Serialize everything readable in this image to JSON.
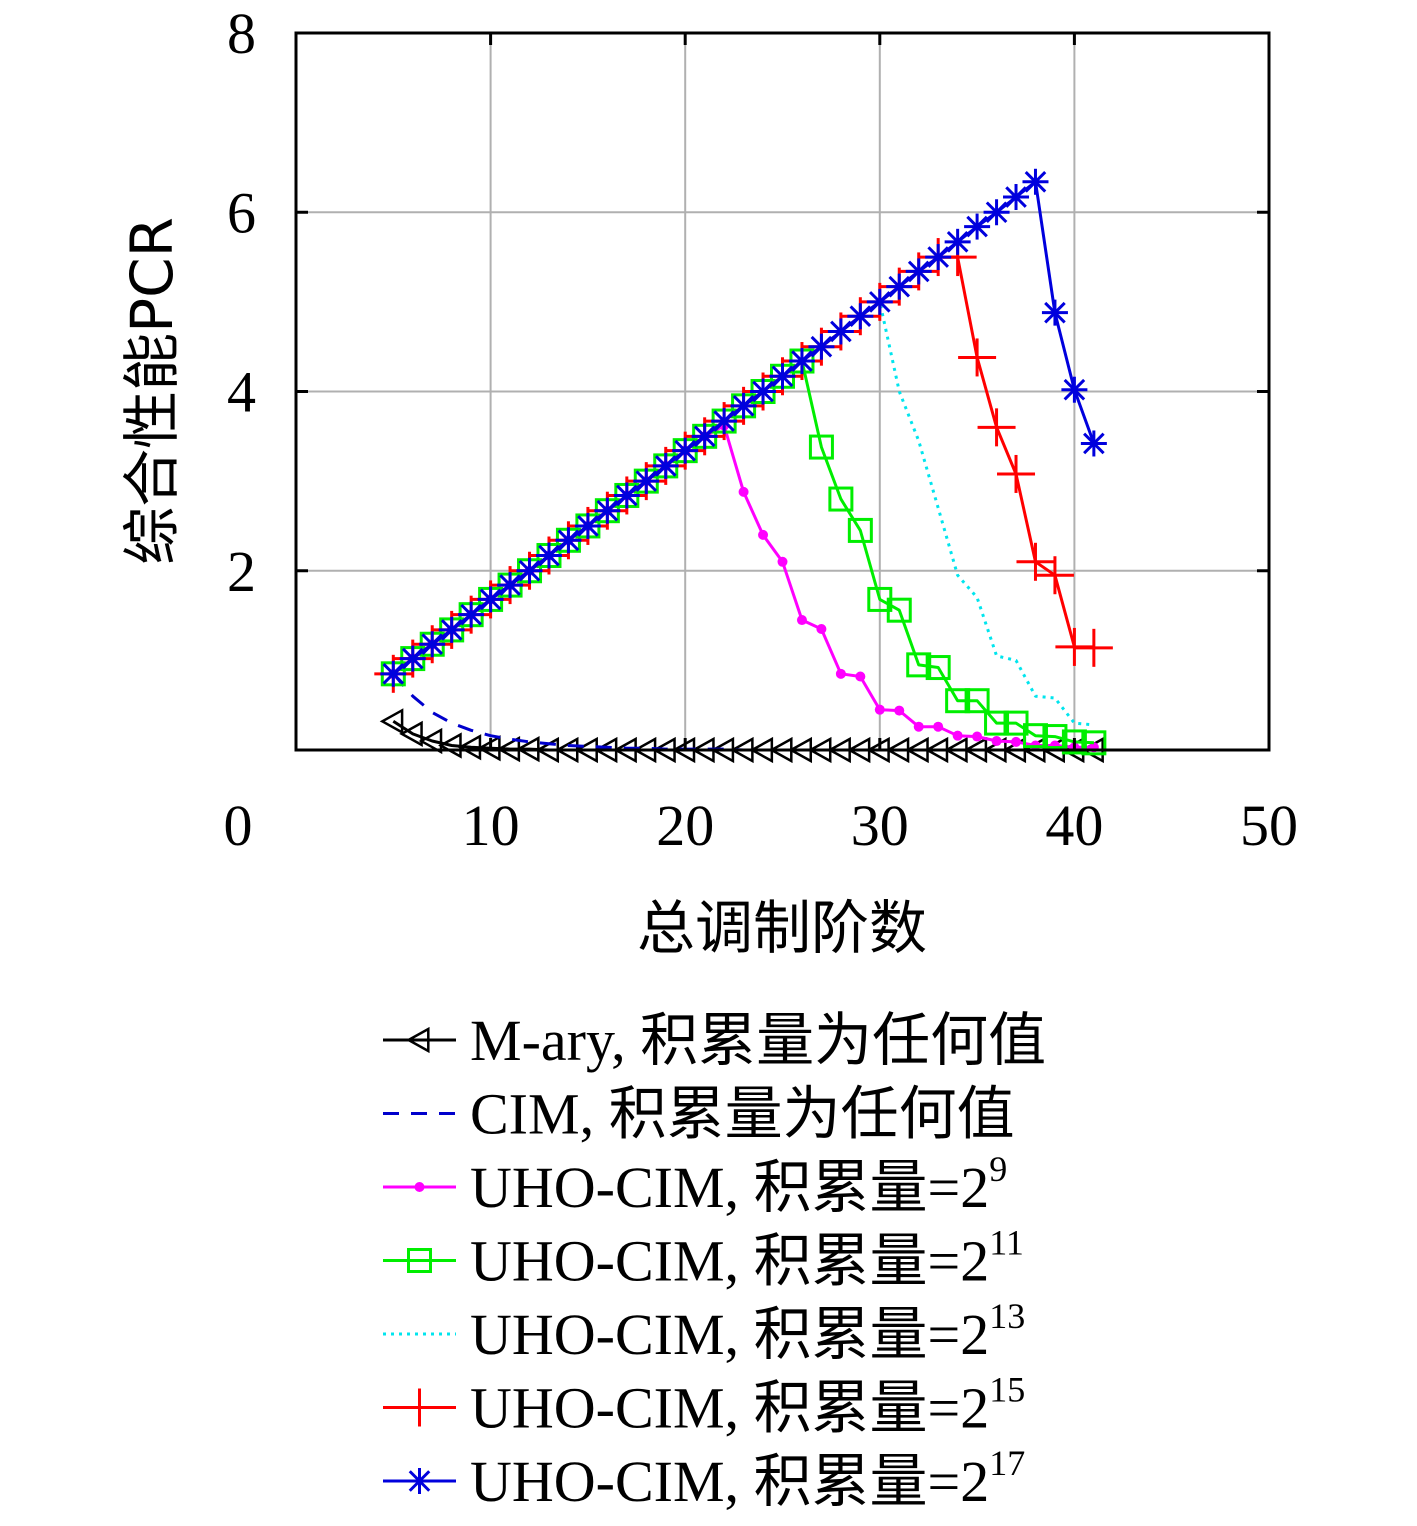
{
  "chart_data": {
    "type": "line",
    "title": "",
    "xlabel": "总调制阶数",
    "ylabel": "综合性能PCR",
    "xlim": [
      0,
      50
    ],
    "ylim": [
      0,
      8
    ],
    "xticks": [
      "0",
      "10",
      "20",
      "30",
      "40",
      "50"
    ],
    "yticks": [
      "0",
      "2",
      "4",
      "6",
      "8"
    ],
    "grid": true,
    "legend_position": "below plot",
    "series": [
      {
        "name": "M-ary, 积累量为任何值",
        "color": "#000000",
        "line": "solid",
        "marker": "triangle-left",
        "x": [
          5,
          6,
          7,
          8,
          9,
          10,
          11,
          12,
          13,
          14,
          15,
          16,
          17,
          18,
          19,
          20,
          21,
          22,
          23,
          24,
          25,
          26,
          27,
          28,
          29,
          30,
          31,
          32,
          33,
          34,
          35,
          36,
          37,
          38,
          39,
          40,
          41
        ],
        "y": [
          0.32,
          0.18,
          0.1,
          0.05,
          0.03,
          0.02,
          0.01,
          0.01,
          0.0,
          0.0,
          0.0,
          0.0,
          0.0,
          0.0,
          0.0,
          0.0,
          0.0,
          0.0,
          0.0,
          0.0,
          0.0,
          0.0,
          0.0,
          0.0,
          0.0,
          0.0,
          0.0,
          0.0,
          0.0,
          0.0,
          0.0,
          0.0,
          0.0,
          0.0,
          0.0,
          0.0,
          0.0
        ]
      },
      {
        "name": "CIM, 积累量为任何值",
        "color": "#0000cc",
        "line": "dashed",
        "marker": "none",
        "x": [
          5,
          6,
          7,
          8,
          9,
          10,
          11,
          12,
          13,
          14,
          15,
          16,
          17,
          18,
          19,
          20,
          21,
          22,
          23,
          24,
          25,
          26,
          27,
          28,
          29,
          30,
          31,
          32,
          33,
          34,
          35,
          36,
          37,
          38,
          39,
          40,
          41
        ],
        "y": [
          0.85,
          0.6,
          0.42,
          0.3,
          0.22,
          0.16,
          0.12,
          0.09,
          0.07,
          0.05,
          0.04,
          0.03,
          0.02,
          0.02,
          0.01,
          0.01,
          0.01,
          0.01,
          0.0,
          0.0,
          0.0,
          0.0,
          0.0,
          0.0,
          0.0,
          0.0,
          0.0,
          0.0,
          0.0,
          0.0,
          0.0,
          0.0,
          0.0,
          0.0,
          0.0,
          0.0,
          0.0
        ]
      },
      {
        "name": "UHO-CIM, 积累量=2",
        "exponent": "9",
        "color": "#ff00ff",
        "line": "solid",
        "marker": "dot",
        "x": [
          5,
          6,
          7,
          8,
          9,
          10,
          11,
          12,
          13,
          14,
          15,
          16,
          17,
          18,
          19,
          20,
          21,
          22,
          23,
          24,
          25,
          26,
          27,
          28,
          29,
          30,
          31,
          32,
          33,
          34,
          35,
          36,
          37,
          38,
          39,
          40,
          41
        ],
        "y": [
          0.85,
          1.02,
          1.18,
          1.34,
          1.51,
          1.68,
          1.84,
          2.0,
          2.17,
          2.34,
          2.5,
          2.67,
          2.84,
          3.0,
          3.17,
          3.34,
          3.5,
          3.62,
          2.88,
          2.4,
          2.1,
          1.45,
          1.35,
          0.85,
          0.82,
          0.45,
          0.44,
          0.26,
          0.26,
          0.16,
          0.15,
          0.1,
          0.09,
          0.05,
          0.05,
          0.03,
          0.03
        ]
      },
      {
        "name": "UHO-CIM, 积累量=2",
        "exponent": "11",
        "color": "#00ee00",
        "line": "solid",
        "marker": "square",
        "x": [
          5,
          6,
          7,
          8,
          9,
          10,
          11,
          12,
          13,
          14,
          15,
          16,
          17,
          18,
          19,
          20,
          21,
          22,
          23,
          24,
          25,
          26,
          27,
          28,
          29,
          30,
          31,
          32,
          33,
          34,
          35,
          36,
          37,
          38,
          39,
          40,
          41
        ],
        "y": [
          0.85,
          1.02,
          1.18,
          1.34,
          1.51,
          1.68,
          1.84,
          2.0,
          2.17,
          2.34,
          2.5,
          2.67,
          2.84,
          3.0,
          3.17,
          3.34,
          3.5,
          3.67,
          3.84,
          4.0,
          4.17,
          4.34,
          3.38,
          2.8,
          2.45,
          1.68,
          1.56,
          0.95,
          0.92,
          0.55,
          0.55,
          0.3,
          0.3,
          0.16,
          0.15,
          0.09,
          0.08
        ]
      },
      {
        "name": "UHO-CIM, 积累量=2",
        "exponent": "13",
        "color": "#00e5ee",
        "line": "dotted",
        "marker": "none",
        "x": [
          5,
          6,
          7,
          8,
          9,
          10,
          11,
          12,
          13,
          14,
          15,
          16,
          17,
          18,
          19,
          20,
          21,
          22,
          23,
          24,
          25,
          26,
          27,
          28,
          29,
          30,
          31,
          32,
          33,
          34,
          35,
          36,
          37,
          38,
          39,
          40,
          41
        ],
        "y": [
          0.85,
          1.02,
          1.18,
          1.34,
          1.51,
          1.68,
          1.84,
          2.0,
          2.17,
          2.34,
          2.5,
          2.67,
          2.84,
          3.0,
          3.17,
          3.34,
          3.5,
          3.67,
          3.84,
          4.0,
          4.17,
          4.34,
          4.5,
          4.67,
          4.84,
          5.0,
          4.0,
          3.45,
          2.7,
          1.95,
          1.7,
          1.05,
          1.0,
          0.6,
          0.58,
          0.3,
          0.28
        ]
      },
      {
        "name": "UHO-CIM, 积累量=2",
        "exponent": "15",
        "color": "#ff0000",
        "line": "solid",
        "marker": "plus",
        "x": [
          5,
          6,
          7,
          8,
          9,
          10,
          11,
          12,
          13,
          14,
          15,
          16,
          17,
          18,
          19,
          20,
          21,
          22,
          23,
          24,
          25,
          26,
          27,
          28,
          29,
          30,
          31,
          32,
          33,
          34,
          35,
          36,
          37,
          38,
          39,
          40,
          41
        ],
        "y": [
          0.85,
          1.02,
          1.18,
          1.34,
          1.51,
          1.68,
          1.84,
          2.0,
          2.17,
          2.34,
          2.5,
          2.67,
          2.84,
          3.0,
          3.17,
          3.34,
          3.5,
          3.67,
          3.84,
          4.0,
          4.17,
          4.34,
          4.5,
          4.67,
          4.84,
          5.0,
          5.17,
          5.34,
          5.5,
          5.5,
          4.38,
          3.6,
          3.08,
          2.1,
          1.95,
          1.15,
          1.14
        ]
      },
      {
        "name": "UHO-CIM, 积累量=2",
        "exponent": "17",
        "color": "#0000dd",
        "line": "solid",
        "marker": "asterisk",
        "x": [
          5,
          6,
          7,
          8,
          9,
          10,
          11,
          12,
          13,
          14,
          15,
          16,
          17,
          18,
          19,
          20,
          21,
          22,
          23,
          24,
          25,
          26,
          27,
          28,
          29,
          30,
          31,
          32,
          33,
          34,
          35,
          36,
          37,
          38,
          39,
          40,
          41
        ],
        "y": [
          0.85,
          1.02,
          1.18,
          1.34,
          1.51,
          1.68,
          1.84,
          2.0,
          2.17,
          2.34,
          2.5,
          2.67,
          2.84,
          3.0,
          3.17,
          3.34,
          3.5,
          3.67,
          3.84,
          4.0,
          4.17,
          4.34,
          4.5,
          4.67,
          4.84,
          5.0,
          5.17,
          5.34,
          5.5,
          5.67,
          5.84,
          6.0,
          6.17,
          6.34,
          4.88,
          4.02,
          3.42
        ]
      }
    ]
  }
}
